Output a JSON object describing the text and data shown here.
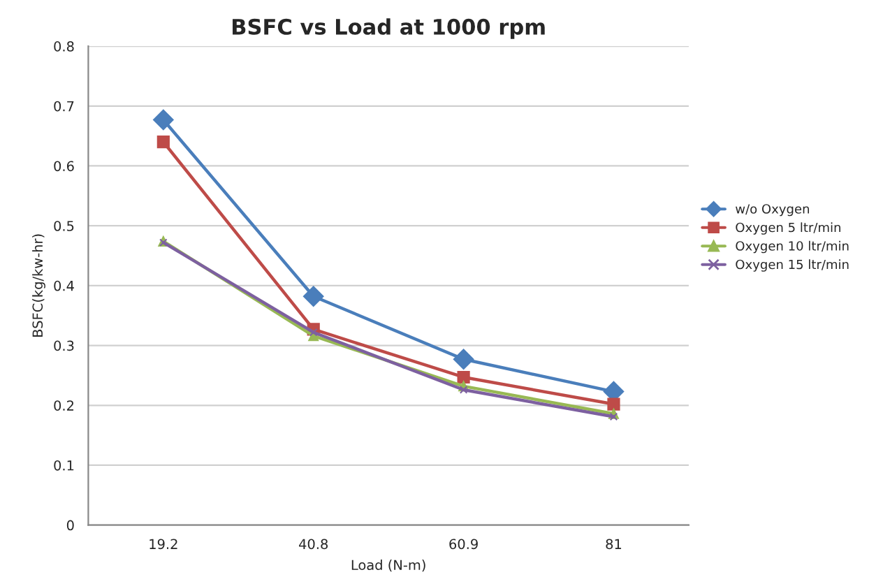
{
  "chart_data": {
    "type": "line",
    "title": "BSFC vs Load at 1000 rpm",
    "xlabel": "Load (N-m)",
    "ylabel": "BSFC(kg/kw-hr)",
    "categories": [
      "19.2",
      "40.8",
      "60.9",
      "81"
    ],
    "series": [
      {
        "name": "w/o Oxygen",
        "color": "#4a7ebb",
        "marker": "diamond",
        "values": [
          0.677,
          0.382,
          0.277,
          0.223
        ]
      },
      {
        "name": "Oxygen 5 ltr/min",
        "color": "#be4b48",
        "marker": "square",
        "values": [
          0.64,
          0.327,
          0.247,
          0.202
        ]
      },
      {
        "name": "Oxygen 10 ltr/min",
        "color": "#98b954",
        "marker": "triangle",
        "values": [
          0.474,
          0.316,
          0.232,
          0.186
        ]
      },
      {
        "name": "Oxygen 15 ltr/min",
        "color": "#7d60a0",
        "marker": "cross",
        "values": [
          0.472,
          0.322,
          0.226,
          0.181
        ]
      }
    ],
    "ylim": [
      0,
      0.8
    ],
    "yticks": [
      0,
      0.1,
      0.2,
      0.3,
      0.4,
      0.5,
      0.6,
      0.7,
      0.8
    ],
    "grid": "y",
    "legend": "right"
  }
}
